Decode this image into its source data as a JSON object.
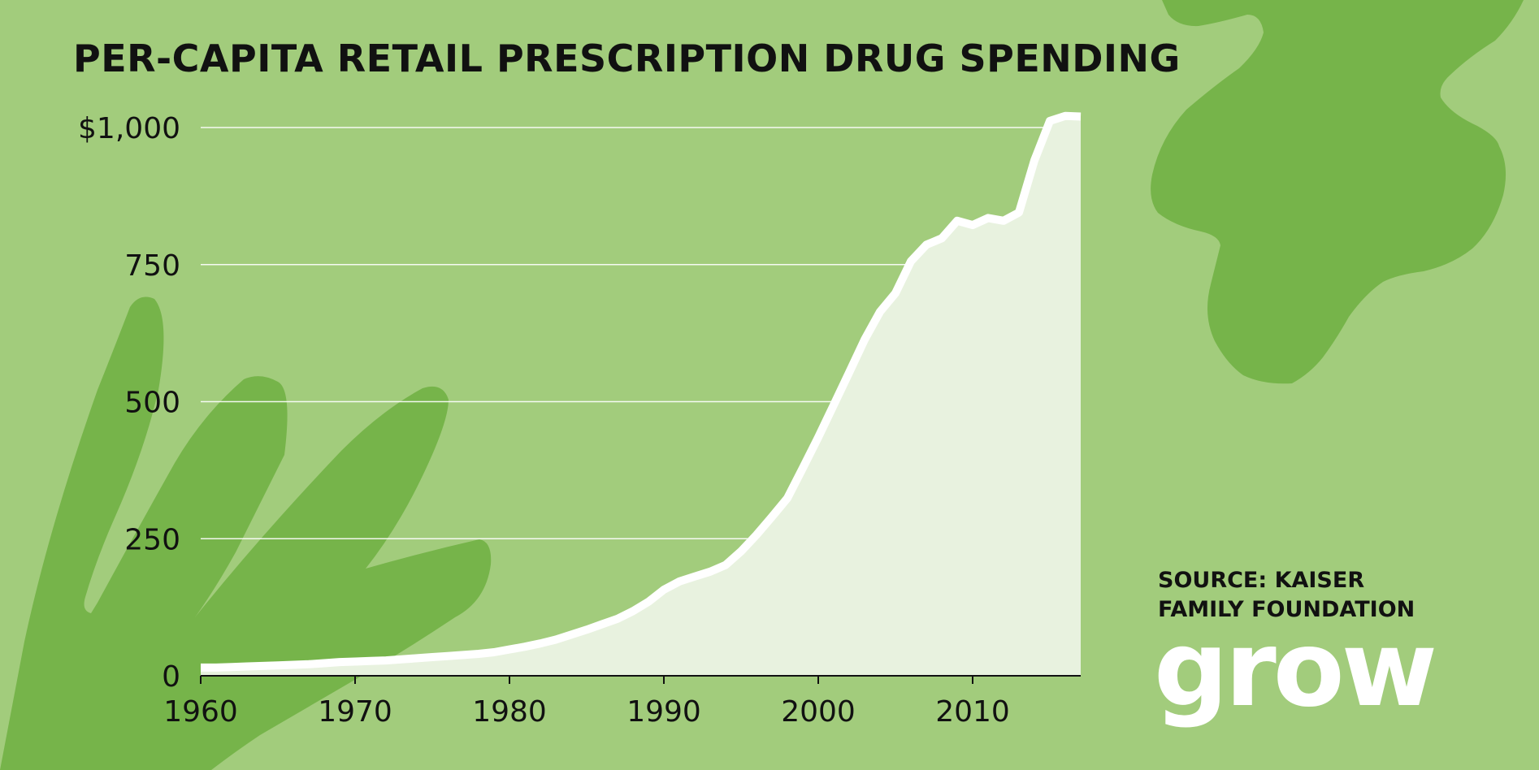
{
  "colors": {
    "background": "#a2cc7c",
    "blob": "#76b44a",
    "line": "#ffffff",
    "fill": "#e8f2df",
    "text": "#111111"
  },
  "title": "PER-CAPITA RETAIL PRESCRIPTION DRUG SPENDING",
  "source_line1": "SOURCE: KAISER",
  "source_line2": "FAMILY FOUNDATION",
  "logo": "grow",
  "chart_data": {
    "type": "area",
    "title": "PER-CAPITA RETAIL PRESCRIPTION DRUG SPENDING",
    "xlabel": "",
    "ylabel": "",
    "xlim": [
      1960,
      2017
    ],
    "ylim": [
      0,
      1000
    ],
    "grid": true,
    "x_ticks": [
      1960,
      1970,
      1980,
      1990,
      2000,
      2010
    ],
    "x_tick_labels": [
      "1960",
      "1970",
      "1980",
      "1990",
      "2000",
      "2010"
    ],
    "y_ticks": [
      0,
      250,
      500,
      750,
      1000
    ],
    "y_tick_labels": [
      "0",
      "250",
      "500",
      "750",
      "$1,000"
    ],
    "series": [
      {
        "x": [
          1960,
          1961,
          1962,
          1963,
          1964,
          1965,
          1966,
          1967,
          1968,
          1969,
          1970,
          1971,
          1972,
          1973,
          1974,
          1975,
          1976,
          1977,
          1978,
          1979,
          1980,
          1981,
          1982,
          1983,
          1984,
          1985,
          1986,
          1987,
          1988,
          1989,
          1990,
          1991,
          1992,
          1993,
          1994,
          1995,
          1996,
          1997,
          1998,
          1999,
          2000,
          2001,
          2002,
          2003,
          2004,
          2005,
          2006,
          2007,
          2008,
          2009,
          2010,
          2011,
          2012,
          2013,
          2014,
          2015,
          2016,
          2017
        ],
        "values": [
          15,
          15,
          16,
          17,
          18,
          19,
          20,
          21,
          23,
          25,
          26,
          27,
          28,
          30,
          32,
          34,
          36,
          38,
          40,
          43,
          48,
          53,
          59,
          66,
          75,
          84,
          94,
          104,
          118,
          135,
          157,
          172,
          181,
          190,
          202,
          227,
          257,
          290,
          324,
          379,
          435,
          494,
          553,
          613,
          664,
          698,
          756,
          786,
          798,
          830,
          822,
          835,
          830,
          845,
          940,
          1012,
          1021,
          1020
        ]
      }
    ]
  }
}
